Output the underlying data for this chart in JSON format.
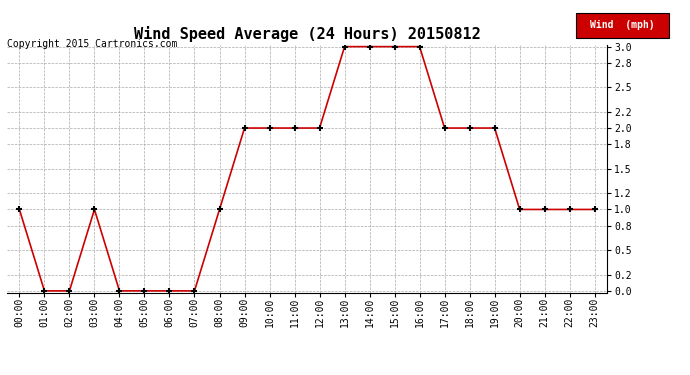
{
  "title": "Wind Speed Average (24 Hours) 20150812",
  "copyright": "Copyright 2015 Cartronics.com",
  "legend_label": "Wind  (mph)",
  "x_labels": [
    "00:00",
    "01:00",
    "02:00",
    "03:00",
    "04:00",
    "05:00",
    "06:00",
    "07:00",
    "08:00",
    "09:00",
    "10:00",
    "11:00",
    "12:00",
    "13:00",
    "14:00",
    "15:00",
    "16:00",
    "17:00",
    "18:00",
    "19:00",
    "20:00",
    "21:00",
    "22:00",
    "23:00"
  ],
  "y_values": [
    1.0,
    0.0,
    0.0,
    1.0,
    0.0,
    0.0,
    0.0,
    0.0,
    1.0,
    2.0,
    2.0,
    2.0,
    2.0,
    3.0,
    3.0,
    3.0,
    3.0,
    2.0,
    2.0,
    2.0,
    1.0,
    1.0,
    1.0,
    1.0
  ],
  "y_ticks": [
    0.0,
    0.2,
    0.5,
    0.8,
    1.0,
    1.2,
    1.5,
    1.8,
    2.0,
    2.2,
    2.5,
    2.8,
    3.0
  ],
  "ylim": [
    0.0,
    3.0
  ],
  "xlim": [
    -0.5,
    23.5
  ],
  "line_color": "#cc0000",
  "marker_color": "#000000",
  "bg_color": "#ffffff",
  "grid_color": "#aaaaaa",
  "title_fontsize": 11,
  "copyright_fontsize": 7,
  "tick_fontsize": 7,
  "legend_bg": "#cc0000",
  "legend_text_color": "#ffffff",
  "legend_fontsize": 7
}
